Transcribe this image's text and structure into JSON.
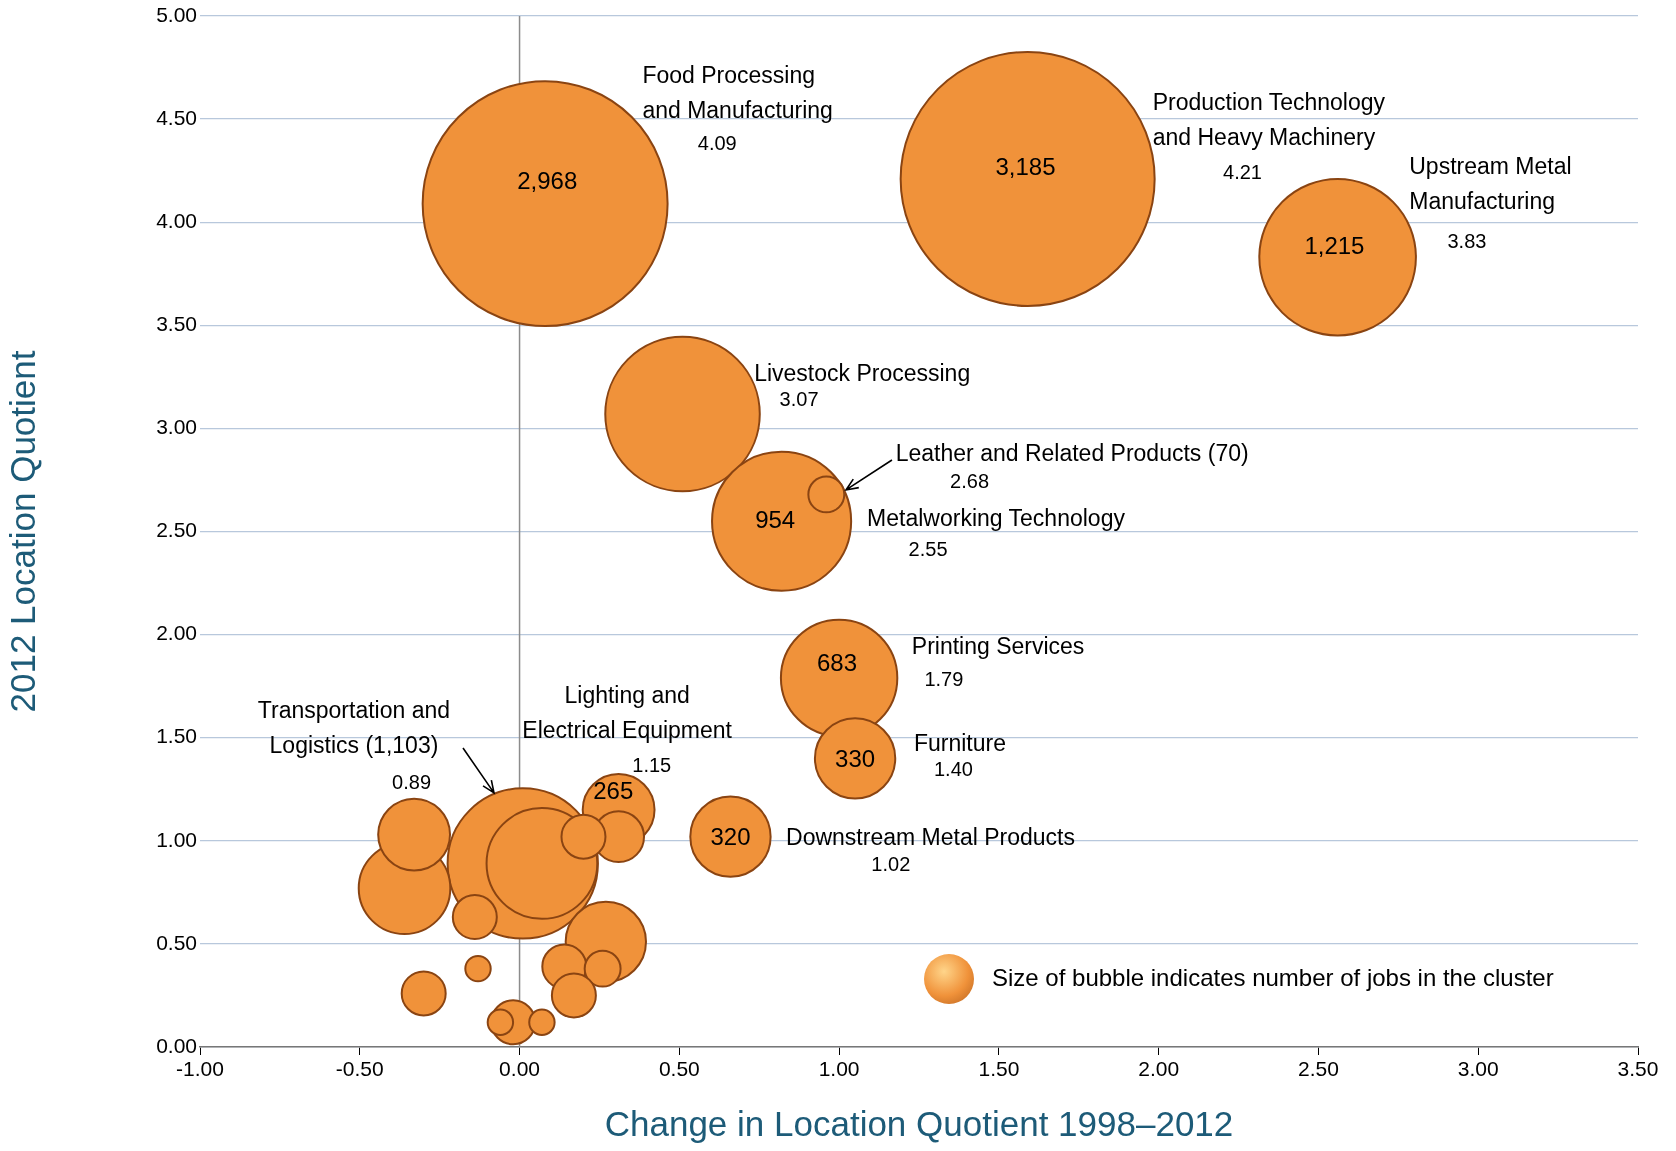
{
  "chart_data": {
    "type": "bubble",
    "xlabel": "Change in Location Quotient 1998–2012",
    "ylabel": "2012 Location Quotient",
    "xlim": [
      -1,
      3.5
    ],
    "xticks": [
      {
        "value": -1,
        "label": "-1.00"
      },
      {
        "value": -0.5,
        "label": "-0.50"
      },
      {
        "value": 0,
        "label": "0.00"
      },
      {
        "value": 0.5,
        "label": "0.50"
      },
      {
        "value": 1,
        "label": "1.00"
      },
      {
        "value": 1.5,
        "label": "1.50"
      },
      {
        "value": 2,
        "label": "2.00"
      },
      {
        "value": 2.5,
        "label": "2.50"
      },
      {
        "value": 3,
        "label": "3.00"
      },
      {
        "value": 3.5,
        "label": "3.50"
      }
    ],
    "ylim": [
      0,
      5
    ],
    "yticks": [
      {
        "value": 0,
        "label": "0.00"
      },
      {
        "value": 0.5,
        "label": "0.50"
      },
      {
        "value": 1,
        "label": "1.00"
      },
      {
        "value": 1.5,
        "label": "1.50"
      },
      {
        "value": 2,
        "label": "2.00"
      },
      {
        "value": 2.5,
        "label": "2.50"
      },
      {
        "value": 3,
        "label": "3.00"
      },
      {
        "value": 3.5,
        "label": "3.50"
      },
      {
        "value": 4,
        "label": "4.00"
      },
      {
        "value": 4.5,
        "label": "4.50"
      },
      {
        "value": 5,
        "label": "5.00"
      }
    ],
    "grid": "y",
    "ref_lines": [
      {
        "axis": "x",
        "value": 0,
        "color": "#8c8c8c"
      }
    ],
    "series": [
      {
        "color": "#f0923a",
        "x": [
          0.08,
          1.59,
          2.56,
          0.51,
          0.82,
          0.96,
          1.0,
          1.05,
          0.66,
          0.01,
          -0.36,
          -0.33,
          0.07,
          0.31,
          0.31,
          0.2,
          0.27,
          -0.14,
          0.14,
          0.26,
          0.17,
          -0.13,
          -0.3,
          -0.02,
          -0.06,
          0.07
        ],
        "values": [
          4.09,
          4.21,
          3.83,
          3.07,
          2.55,
          2.68,
          1.79,
          1.4,
          1.02,
          0.89,
          0.77,
          1.03,
          0.89,
          1.15,
          1.02,
          1.02,
          0.51,
          0.63,
          0.39,
          0.38,
          0.25,
          0.38,
          0.26,
          0.12,
          0.12,
          0.12
        ],
        "sizes": [
          0.93,
          1,
          0.38,
          0.37,
          0.3,
          0.02,
          0.21,
          0.1,
          0.1,
          0.35,
          0.13,
          0.08,
          0.19,
          0.08,
          0.04,
          0.03,
          0.1,
          0.03,
          0.03,
          0.02,
          0.03,
          0.01,
          0.03,
          0.03,
          0.01,
          0.01
        ]
      }
    ],
    "annotations": [
      "Food Processing\nand Manufacturing",
      "4.09",
      {
        "text": "2,968",
        "x": 0.08,
        "y": 4.09
      },
      "Production Technology\nand Heavy Machinery",
      "4.21",
      {
        "text": "3,185",
        "x": 1.59,
        "y": 4.21
      },
      "Upstream Metal\nManufacturing",
      "3.83",
      {
        "text": "1,215",
        "x": 2.56,
        "y": 3.83
      },
      "Livestock Processing",
      "3.07",
      {
        "text": "Leather and Related Products (70)",
        "x": 1.02,
        "y": 2.7
      },
      "2.68",
      "Metalworking Technology",
      "2.55",
      {
        "text": "954",
        "x": 0.82,
        "y": 2.55
      },
      "Printing Services",
      "1.79",
      {
        "text": "683",
        "x": 1.0,
        "y": 1.79
      },
      "Furniture",
      "1.40",
      {
        "text": "330",
        "x": 1.05,
        "y": 1.4
      },
      "Downstream Metal Products",
      "1.02",
      {
        "text": "320",
        "x": 0.66,
        "y": 1.02
      },
      "Lighting and\nElectrical Equipment",
      "1.15",
      {
        "text": "265",
        "x": 0.31,
        "y": 1.15
      },
      {
        "text": "Transportation and\nLogistics (1,103)",
        "x": -0.08,
        "y": 1.23
      },
      "0.89",
      "Size of bubble indicates number of jobs in the cluster"
    ]
  }
}
